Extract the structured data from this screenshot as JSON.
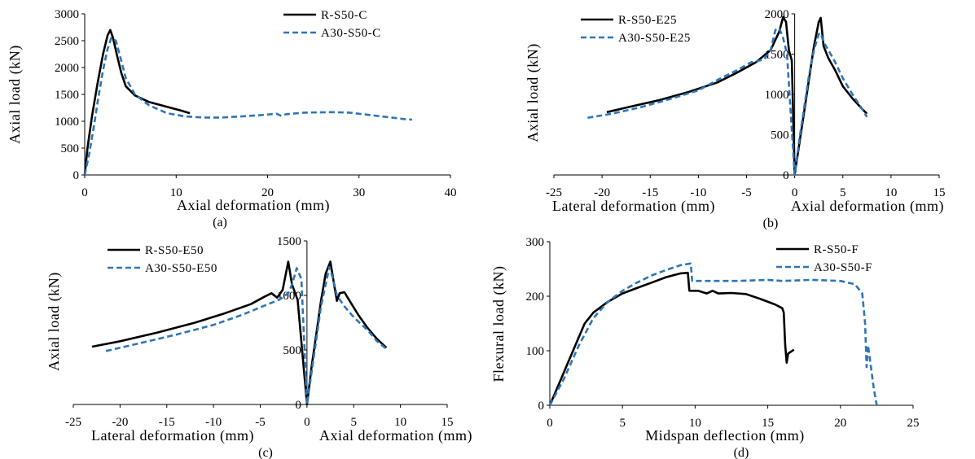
{
  "colors": {
    "r_series": "#000000",
    "a_series": "#2E75B6",
    "axis": "#000000"
  },
  "chart_data": [
    {
      "id": "a",
      "type": "line",
      "caption": "(a)",
      "xlabel": "Axial deformation (mm)",
      "ylabel": "Axial load (kN)",
      "xlim": [
        0,
        40
      ],
      "ylim": [
        0,
        3000
      ],
      "xticks": [
        0,
        10,
        20,
        30,
        40
      ],
      "yticks": [
        0,
        500,
        1000,
        1500,
        2000,
        2500,
        3000
      ],
      "legend_position": "top-right",
      "series": [
        {
          "name": "R-S50-C",
          "style": "solid",
          "points": [
            [
              0,
              0
            ],
            [
              0.3,
              500
            ],
            [
              0.8,
              1100
            ],
            [
              1.4,
              1700
            ],
            [
              2,
              2250
            ],
            [
              2.5,
              2600
            ],
            [
              2.8,
              2700
            ],
            [
              3.1,
              2550
            ],
            [
              3.5,
              2250
            ],
            [
              4,
              1900
            ],
            [
              4.5,
              1650
            ],
            [
              5.5,
              1480
            ],
            [
              7,
              1360
            ],
            [
              9,
              1270
            ],
            [
              10.5,
              1200
            ],
            [
              11.5,
              1150
            ]
          ]
        },
        {
          "name": "A30-S50-C",
          "style": "dashed",
          "points": [
            [
              0,
              0
            ],
            [
              0.5,
              400
            ],
            [
              1,
              900
            ],
            [
              1.5,
              1450
            ],
            [
              2,
              1950
            ],
            [
              2.5,
              2350
            ],
            [
              2.9,
              2550
            ],
            [
              3.4,
              2500
            ],
            [
              3.8,
              2250
            ],
            [
              4.5,
              1800
            ],
            [
              5.5,
              1500
            ],
            [
              7,
              1300
            ],
            [
              9,
              1150
            ],
            [
              11,
              1090
            ],
            [
              13,
              1070
            ],
            [
              15,
              1070
            ],
            [
              17,
              1090
            ],
            [
              19,
              1110
            ],
            [
              21,
              1140
            ],
            [
              21.5,
              1100
            ],
            [
              22,
              1130
            ],
            [
              24,
              1160
            ],
            [
              27,
              1170
            ],
            [
              29,
              1160
            ],
            [
              31,
              1120
            ],
            [
              33,
              1080
            ],
            [
              35,
              1040
            ],
            [
              35.8,
              1030
            ]
          ]
        }
      ]
    },
    {
      "id": "b",
      "type": "line",
      "caption": "(b)",
      "xlabel_left": "Lateral deformation (mm)",
      "xlabel_right": "Axial deformation (mm)",
      "ylabel": "Axial load (kN)",
      "xlim": [
        -25,
        15
      ],
      "ylim": [
        0,
        2000
      ],
      "xticks": [
        -25,
        -20,
        -15,
        -10,
        -5,
        0,
        5,
        10,
        15
      ],
      "yticks": [
        0,
        500,
        1000,
        1500,
        2000
      ],
      "legend_position": "top-left",
      "series": [
        {
          "name": "R-S50-E25",
          "style": "solid",
          "points": [
            [
              -19.5,
              780
            ],
            [
              -17,
              850
            ],
            [
              -14,
              930
            ],
            [
              -11,
              1030
            ],
            [
              -8,
              1150
            ],
            [
              -6,
              1270
            ],
            [
              -4,
              1400
            ],
            [
              -2.5,
              1550
            ],
            [
              -1.6,
              1780
            ],
            [
              -1.2,
              1960
            ],
            [
              -0.9,
              1900
            ],
            [
              -0.6,
              1550
            ],
            [
              -0.3,
              1420
            ],
            [
              0,
              0
            ],
            [
              0.5,
              400
            ],
            [
              1,
              800
            ],
            [
              1.5,
              1200
            ],
            [
              2,
              1600
            ],
            [
              2.5,
              1900
            ],
            [
              2.7,
              1950
            ],
            [
              3,
              1600
            ],
            [
              3.5,
              1450
            ],
            [
              4.2,
              1300
            ],
            [
              5,
              1100
            ],
            [
              6,
              950
            ],
            [
              7,
              820
            ],
            [
              7.5,
              760
            ]
          ]
        },
        {
          "name": "A30-S50-E25",
          "style": "dashed",
          "points": [
            [
              -21.5,
              710
            ],
            [
              -19,
              760
            ],
            [
              -16,
              840
            ],
            [
              -13,
              940
            ],
            [
              -10,
              1050
            ],
            [
              -8,
              1180
            ],
            [
              -6,
              1300
            ],
            [
              -4.5,
              1400
            ],
            [
              -3.2,
              1430
            ],
            [
              -2.5,
              1550
            ],
            [
              -2,
              1800
            ],
            [
              -1.6,
              1820
            ],
            [
              -1.2,
              1700
            ],
            [
              -0.8,
              1500
            ],
            [
              0,
              0
            ],
            [
              0.5,
              450
            ],
            [
              1,
              850
            ],
            [
              1.5,
              1250
            ],
            [
              2,
              1550
            ],
            [
              2.5,
              1750
            ],
            [
              2.7,
              1760
            ],
            [
              3,
              1650
            ],
            [
              3.5,
              1550
            ],
            [
              4.2,
              1400
            ],
            [
              5,
              1200
            ],
            [
              6,
              1000
            ],
            [
              7,
              820
            ],
            [
              7.5,
              720
            ]
          ]
        }
      ]
    },
    {
      "id": "c",
      "type": "line",
      "caption": "(c)",
      "xlabel_left": "Lateral deformation (mm)",
      "xlabel_right": "Axial deformation (mm)",
      "ylabel": "Axial load (kN)",
      "xlim": [
        -25,
        15
      ],
      "ylim": [
        0,
        1500
      ],
      "xticks": [
        -25,
        -20,
        -15,
        -10,
        -5,
        0,
        5,
        10,
        15
      ],
      "yticks": [
        0,
        500,
        1000,
        1500
      ],
      "legend_position": "top-left",
      "series": [
        {
          "name": "R-S50-E50",
          "style": "solid",
          "points": [
            [
              -23,
              530
            ],
            [
              -20,
              580
            ],
            [
              -16,
              660
            ],
            [
              -12,
              750
            ],
            [
              -9,
              830
            ],
            [
              -6,
              920
            ],
            [
              -4.5,
              990
            ],
            [
              -3.8,
              1020
            ],
            [
              -3.2,
              980
            ],
            [
              -2.6,
              1050
            ],
            [
              -2,
              1310
            ],
            [
              -1.6,
              1100
            ],
            [
              -1,
              960
            ],
            [
              0,
              0
            ],
            [
              0.5,
              350
            ],
            [
              1,
              650
            ],
            [
              1.5,
              950
            ],
            [
              2,
              1200
            ],
            [
              2.5,
              1310
            ],
            [
              2.9,
              1100
            ],
            [
              3.2,
              950
            ],
            [
              3.5,
              1020
            ],
            [
              4,
              1030
            ],
            [
              4.5,
              960
            ],
            [
              5.5,
              820
            ],
            [
              6.5,
              700
            ],
            [
              7.5,
              600
            ],
            [
              8.5,
              520
            ]
          ]
        },
        {
          "name": "A30-S50-E50",
          "style": "dashed",
          "points": [
            [
              -21.5,
              490
            ],
            [
              -18,
              560
            ],
            [
              -14,
              640
            ],
            [
              -10,
              730
            ],
            [
              -7,
              820
            ],
            [
              -5,
              890
            ],
            [
              -3,
              960
            ],
            [
              -2,
              1020
            ],
            [
              -1.6,
              1100
            ],
            [
              -1.1,
              1250
            ],
            [
              -0.6,
              1150
            ],
            [
              0,
              0
            ],
            [
              0.5,
              300
            ],
            [
              1,
              600
            ],
            [
              1.5,
              900
            ],
            [
              2,
              1100
            ],
            [
              2.4,
              1260
            ],
            [
              2.8,
              1150
            ],
            [
              3.2,
              1000
            ],
            [
              4,
              900
            ],
            [
              5,
              800
            ],
            [
              6.5,
              680
            ],
            [
              7.5,
              580
            ],
            [
              8.5,
              510
            ]
          ]
        }
      ]
    },
    {
      "id": "d",
      "type": "line",
      "caption": "(d)",
      "xlabel": "Midspan deflection (mm)",
      "ylabel": "Flexural load (kN)",
      "xlim": [
        0,
        25
      ],
      "ylim": [
        0,
        300
      ],
      "xticks": [
        0,
        5,
        10,
        15,
        20,
        25
      ],
      "yticks": [
        0,
        100,
        200,
        300
      ],
      "legend_position": "top-right",
      "series": [
        {
          "name": "R-S50-F",
          "style": "solid",
          "points": [
            [
              0,
              0
            ],
            [
              0.8,
              50
            ],
            [
              1.6,
              100
            ],
            [
              2.4,
              150
            ],
            [
              3,
              170
            ],
            [
              4,
              190
            ],
            [
              5,
              205
            ],
            [
              6,
              215
            ],
            [
              7,
              225
            ],
            [
              8,
              235
            ],
            [
              9,
              242
            ],
            [
              9.5,
              243
            ],
            [
              9.6,
              210
            ],
            [
              10.2,
              210
            ],
            [
              10.8,
              205
            ],
            [
              11.2,
              210
            ],
            [
              11.6,
              205
            ],
            [
              12.5,
              206
            ],
            [
              13.5,
              204
            ],
            [
              14.5,
              195
            ],
            [
              15.5,
              185
            ],
            [
              16,
              178
            ],
            [
              16.1,
              170
            ],
            [
              16.2,
              110
            ],
            [
              16.3,
              78
            ],
            [
              16.4,
              95
            ],
            [
              16.8,
              102
            ]
          ]
        },
        {
          "name": "A30-S50-F",
          "style": "dashed",
          "points": [
            [
              0,
              0
            ],
            [
              1,
              50
            ],
            [
              2,
              110
            ],
            [
              3,
              160
            ],
            [
              4,
              190
            ],
            [
              5,
              210
            ],
            [
              6,
              225
            ],
            [
              7,
              238
            ],
            [
              8,
              248
            ],
            [
              9,
              257
            ],
            [
              9.7,
              260
            ],
            [
              9.8,
              228
            ],
            [
              11,
              228
            ],
            [
              13,
              228
            ],
            [
              15,
              230
            ],
            [
              16,
              228
            ],
            [
              18,
              230
            ],
            [
              20,
              228
            ],
            [
              21,
              222
            ],
            [
              21.5,
              205
            ],
            [
              21.7,
              150
            ],
            [
              21.8,
              70
            ],
            [
              21.9,
              110
            ],
            [
              22.1,
              70
            ],
            [
              22.3,
              30
            ],
            [
              22.5,
              0
            ]
          ]
        }
      ]
    }
  ]
}
